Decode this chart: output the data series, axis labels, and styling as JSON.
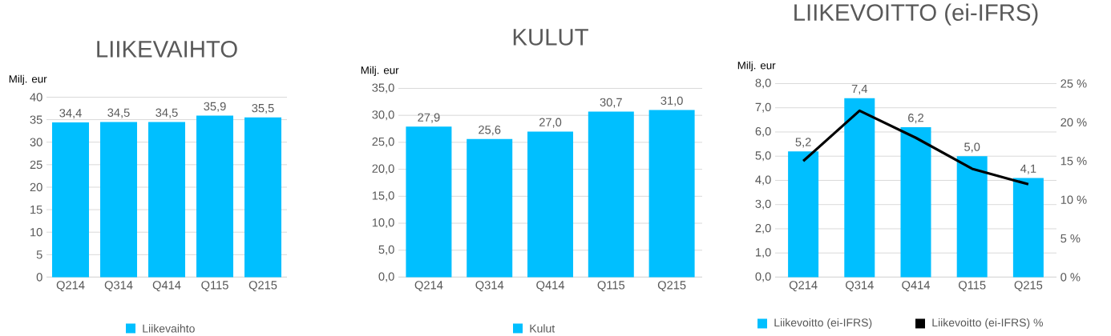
{
  "chart_data": [
    {
      "type": "bar",
      "title": "LIIKEVAIHTO",
      "ylabel": "Milj. eur",
      "categories": [
        "Q214",
        "Q314",
        "Q414",
        "Q115",
        "Q215"
      ],
      "series": [
        {
          "name": "Liikevaihto",
          "color": "#00bfff",
          "values": [
            34.4,
            34.5,
            34.5,
            35.9,
            35.5
          ],
          "value_labels": [
            "34,4",
            "34,5",
            "34,5",
            "35,9",
            "35,5"
          ]
        }
      ],
      "ylim": [
        0,
        40
      ],
      "yticks": [
        0,
        5,
        10,
        15,
        20,
        25,
        30,
        35,
        40
      ],
      "grid": "y",
      "legend": "bottom"
    },
    {
      "type": "bar",
      "title": "KULUT",
      "ylabel": "Milj. eur",
      "categories": [
        "Q214",
        "Q314",
        "Q414",
        "Q115",
        "Q215"
      ],
      "series": [
        {
          "name": "Kulut",
          "color": "#00bfff",
          "values": [
            27.9,
            25.6,
            27.0,
            30.7,
            31.0
          ],
          "value_labels": [
            "27,9",
            "25,6",
            "27,0",
            "30,7",
            "31,0"
          ]
        }
      ],
      "ylim": [
        0,
        35
      ],
      "yticks": [
        {
          "value": 0,
          "label": "0,0"
        },
        {
          "value": 5,
          "label": "5,0"
        },
        {
          "value": 10,
          "label": "10,0"
        },
        {
          "value": 15,
          "label": "15,0"
        },
        {
          "value": 20,
          "label": "20,0"
        },
        {
          "value": 25,
          "label": "25,0"
        },
        {
          "value": 30,
          "label": "30,0"
        },
        {
          "value": 35,
          "label": "35,0"
        }
      ],
      "grid": "y",
      "legend": "bottom"
    },
    {
      "type": "bar",
      "title": "LIIKEVOITTO (ei-IFRS)",
      "ylabel": "Milj. eur",
      "categories": [
        "Q214",
        "Q314",
        "Q414",
        "Q115",
        "Q215"
      ],
      "series": [
        {
          "name": "Liikevoitto (ei-IFRS)",
          "color": "#00bfff",
          "values": [
            5.2,
            7.4,
            6.2,
            5.0,
            4.1
          ],
          "value_labels": [
            "5,2",
            "7,4",
            "6,2",
            "5,0",
            "4,1"
          ]
        },
        {
          "name": "Liikevoitto (ei-IFRS) %",
          "type": "line",
          "axis": "y2",
          "color": "#000000",
          "values": [
            15,
            21.5,
            18,
            14,
            12
          ],
          "marker": "none",
          "line_style": "solid"
        }
      ],
      "ylim": [
        0,
        8
      ],
      "yticks": [
        {
          "value": 0,
          "label": "0,0"
        },
        {
          "value": 1,
          "label": "1,0"
        },
        {
          "value": 2,
          "label": "2,0"
        },
        {
          "value": 3,
          "label": "3,0"
        },
        {
          "value": 4,
          "label": "4,0"
        },
        {
          "value": 5,
          "label": "5,0"
        },
        {
          "value": 6,
          "label": "6,0"
        },
        {
          "value": 7,
          "label": "7,0"
        },
        {
          "value": 8,
          "label": "8,0"
        }
      ],
      "y2lim": [
        0,
        25
      ],
      "y2ticks": [
        {
          "value": 0,
          "label": "0 %"
        },
        {
          "value": 5,
          "label": "5 %"
        },
        {
          "value": 10,
          "label": "10 %"
        },
        {
          "value": 15,
          "label": "15 %"
        },
        {
          "value": 20,
          "label": "20 %"
        },
        {
          "value": 25,
          "label": "25 %"
        }
      ],
      "grid": "y",
      "legend": "bottom"
    }
  ]
}
